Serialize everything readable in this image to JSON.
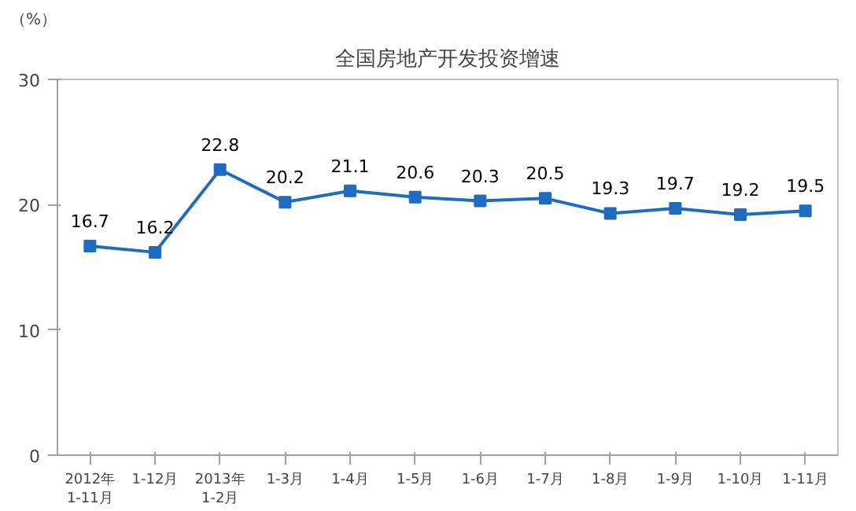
{
  "chart_data": {
    "type": "line",
    "title": "全国房地产开发投资增速",
    "ylabel": "（%）",
    "categories": [
      "2012年\n1-11月",
      "1-12月",
      "2013年\n1-2月",
      "1-3月",
      "1-4月",
      "1-5月",
      "1-6月",
      "1-7月",
      "1-8月",
      "1-9月",
      "1-10月",
      "1-11月"
    ],
    "series": [
      {
        "color": "#1f6bbf",
        "values": [
          16.7,
          16.2,
          22.8,
          20.2,
          21.1,
          20.6,
          20.3,
          20.5,
          19.3,
          19.7,
          19.2,
          19.5
        ]
      }
    ],
    "ylim": [
      0,
      30
    ],
    "yticks": [
      0,
      10,
      20,
      30
    ],
    "data_labels": true,
    "marker": "square",
    "grid": false
  }
}
